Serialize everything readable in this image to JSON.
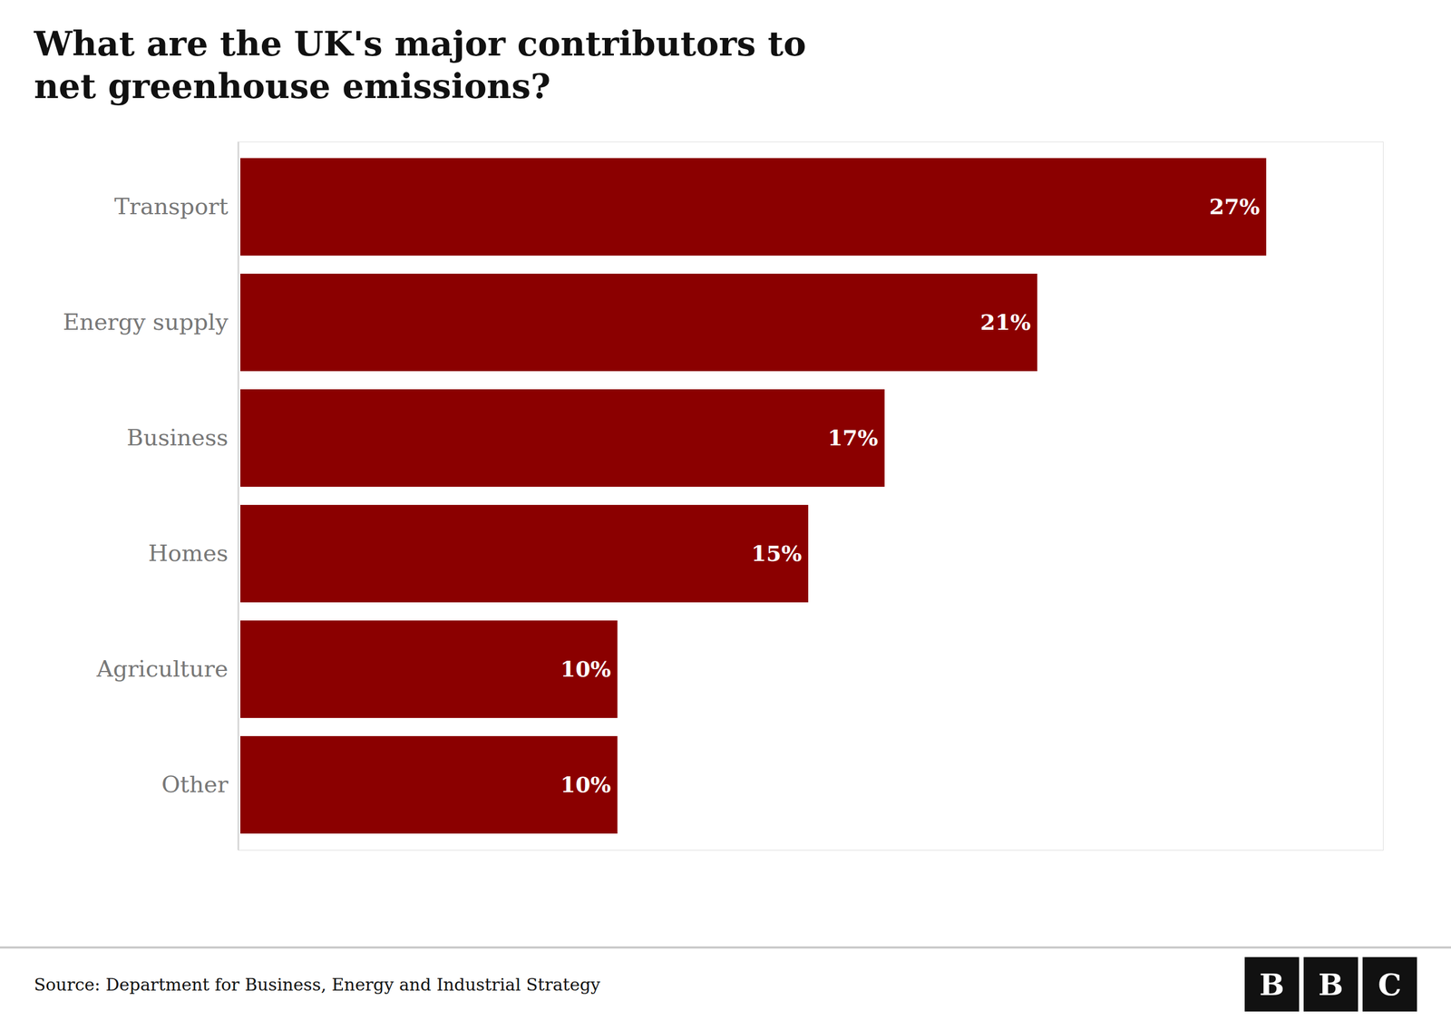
{
  "chart_data": {
    "type": "bar",
    "title": "What are the UK's major contributors to\nnet greenhouse emissions?",
    "categories": [
      "Transport",
      "Energy supply",
      "Business",
      "Homes",
      "Agriculture",
      "Other"
    ],
    "values": [
      27,
      21,
      17,
      15,
      10,
      10
    ],
    "value_labels": [
      "27%",
      "21%",
      "17%",
      "15%",
      "10%",
      "10%"
    ],
    "data_labels": true,
    "color": "#8B0000",
    "orientation": "horizontal",
    "xlim": [
      0,
      30
    ],
    "tick_labels": "y",
    "grid": false,
    "annotations": [
      "Source: Department for Business, Energy and Industrial Strategy",
      "BBC"
    ]
  }
}
